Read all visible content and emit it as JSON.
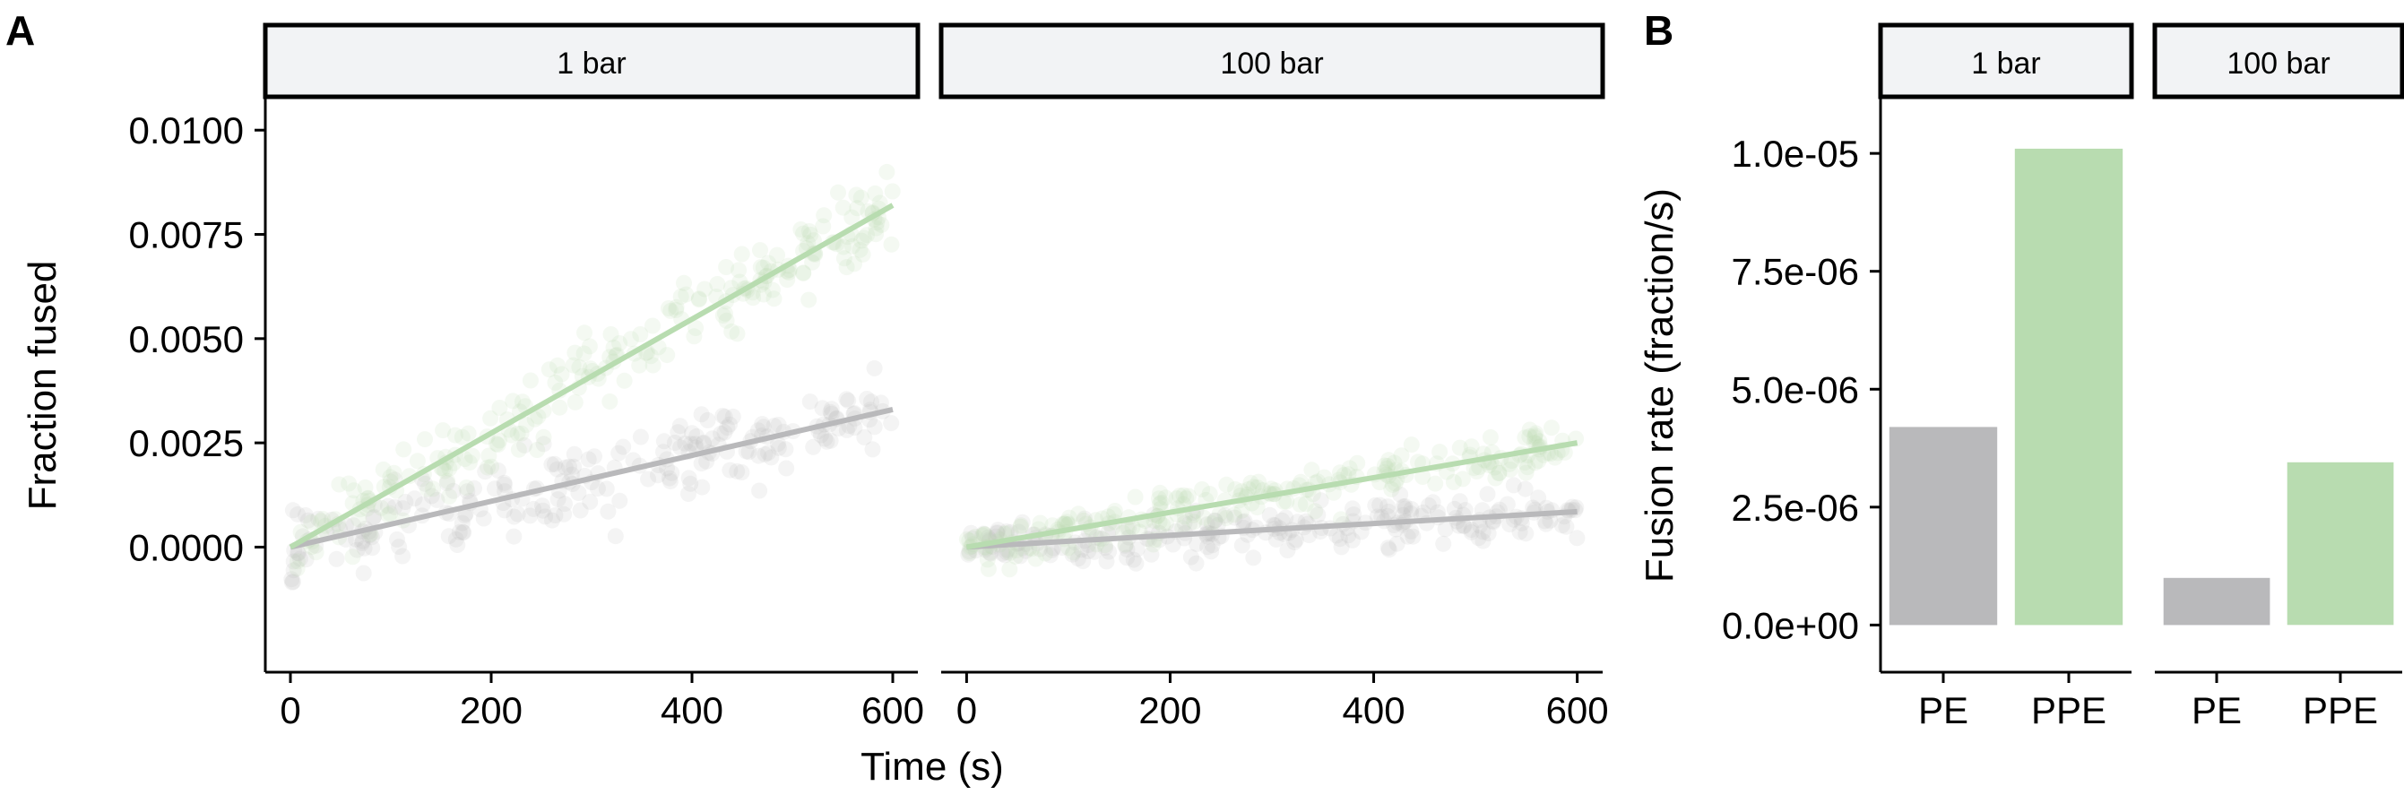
{
  "colors": {
    "PE": "#b9b9bb",
    "PPE": "#b8dcb0",
    "strip_bg": "#f2f3f5"
  },
  "panel_labels": [
    "A",
    "B"
  ],
  "chart_data": [
    {
      "type": "scatter",
      "panel": "A",
      "xlabel": "Time (s)",
      "ylabel": "Fraction fused",
      "facets": [
        "1 bar",
        "100 bar"
      ],
      "xlim": [
        -25,
        625
      ],
      "ylim": [
        -0.003,
        0.0108
      ],
      "xticks": [
        0,
        200,
        400,
        600
      ],
      "xtick_labels": [
        "0",
        "200",
        "400",
        "600"
      ],
      "yticks": [
        0.0,
        0.0025,
        0.005,
        0.0075,
        0.01
      ],
      "ytick_labels": [
        "0.0000",
        "0.0025",
        "0.0050",
        "0.0075",
        "0.0100"
      ],
      "series": [
        {
          "facet": "1 bar",
          "group": "PE",
          "slope": 5.5e-06,
          "points_approx_noise": 0.0009
        },
        {
          "facet": "1 bar",
          "group": "PPE",
          "slope": 1.36e-05,
          "points_approx_noise": 0.0009
        },
        {
          "facet": "100 bar",
          "group": "PE",
          "slope": 1.4e-06,
          "points_approx_noise": 0.0005
        },
        {
          "facet": "100 bar",
          "group": "PPE",
          "slope": 4.2e-06,
          "points_approx_noise": 0.0005
        }
      ],
      "fit_lines": [
        {
          "facet": "1 bar",
          "group": "PE",
          "x": [
            0,
            600
          ],
          "y": [
            0.0,
            0.0033
          ]
        },
        {
          "facet": "1 bar",
          "group": "PPE",
          "x": [
            0,
            600
          ],
          "y": [
            0.0,
            0.0082
          ]
        },
        {
          "facet": "100 bar",
          "group": "PE",
          "x": [
            0,
            600
          ],
          "y": [
            0.0,
            0.00085
          ]
        },
        {
          "facet": "100 bar",
          "group": "PPE",
          "x": [
            0,
            600
          ],
          "y": [
            0.0,
            0.0025
          ]
        }
      ]
    },
    {
      "type": "bar",
      "panel": "B",
      "ylabel": "Fusion rate (fraction/s)",
      "facets": [
        "1 bar",
        "100 bar"
      ],
      "categories": [
        "PE",
        "PPE"
      ],
      "ylim": [
        -1e-06,
        1.12e-05
      ],
      "yticks": [
        0,
        2.5e-06,
        5e-06,
        7.5e-06,
        1e-05
      ],
      "ytick_labels": [
        "0.0e+00",
        "2.5e-06",
        "5.0e-06",
        "7.5e-06",
        "1.0e-05"
      ],
      "series": [
        {
          "facet": "1 bar",
          "values": [
            4.2e-06,
            1.01e-05
          ]
        },
        {
          "facet": "100 bar",
          "values": [
            1e-06,
            3.45e-06
          ]
        }
      ]
    }
  ]
}
